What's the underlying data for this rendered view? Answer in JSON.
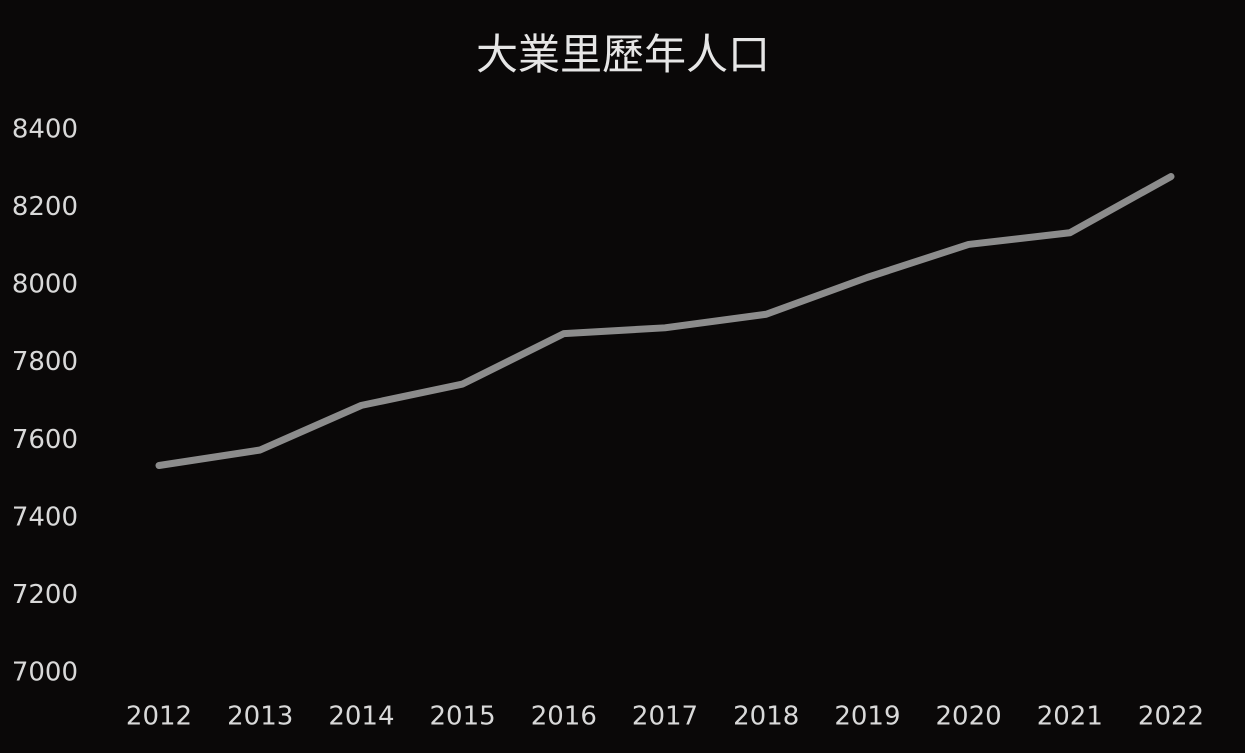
{
  "chart_data": {
    "type": "line",
    "title": "大業里歷年人口",
    "categories": [
      "2012",
      "2013",
      "2014",
      "2015",
      "2016",
      "2017",
      "2018",
      "2019",
      "2020",
      "2021",
      "2022"
    ],
    "values": [
      7535,
      7575,
      7690,
      7745,
      7875,
      7890,
      7925,
      8020,
      8105,
      8135,
      8280
    ],
    "color": "#8c8c8c",
    "ylim": [
      7000,
      8400
    ],
    "yticks": [
      7000,
      7200,
      7400,
      7600,
      7800,
      8000,
      8200,
      8400
    ],
    "grid": false
  }
}
